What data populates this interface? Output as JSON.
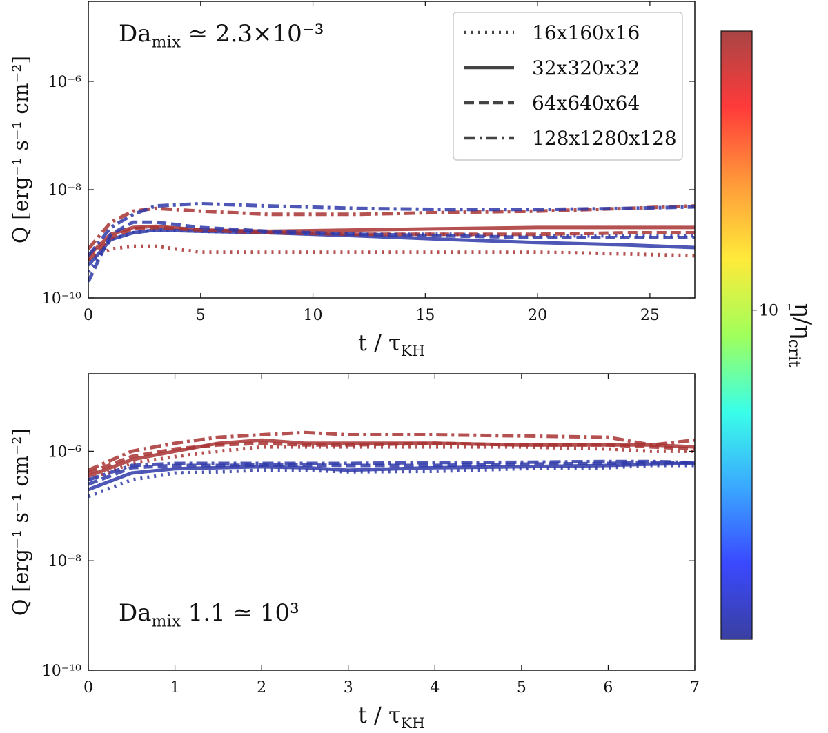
{
  "chart_data": [
    {
      "type": "line",
      "log_y": true,
      "annotation": {
        "text": "Da",
        "sub": "mix",
        "rest": " ≃ 2.3×10⁻³"
      },
      "xlabel": {
        "text": "t / τ",
        "sub": "KH"
      },
      "ylabel": "Q [erg⁻¹ s⁻¹ cm⁻²]",
      "xlim": [
        0,
        27
      ],
      "ylim": [
        1e-10,
        3e-05
      ],
      "xticks": [
        0,
        5,
        10,
        15,
        20,
        25
      ],
      "yticks": [
        {
          "value": 1e-10,
          "label": "10⁻¹⁰"
        },
        {
          "value": 1e-08,
          "label": "10⁻⁸"
        },
        {
          "value": 1e-06,
          "label": "10⁻⁶"
        }
      ],
      "legend": {
        "position": "upper right",
        "entries": [
          {
            "name": "16x160x16",
            "linestyle": "dotted"
          },
          {
            "name": "32x320x32",
            "linestyle": "solid"
          },
          {
            "name": "64x640x64",
            "linestyle": "dashed"
          },
          {
            "name": "128x1280x128",
            "linestyle": "dashdot"
          }
        ]
      },
      "x": [
        0,
        1,
        2,
        3,
        5,
        8,
        12,
        16,
        20,
        24,
        27
      ],
      "series": [
        {
          "color": "#a83232",
          "linestyle": "dotted",
          "values": [
            5e-10,
            8e-10,
            9e-10,
            9e-10,
            7e-10,
            7e-10,
            7e-10,
            7e-10,
            7e-10,
            6.5e-10,
            6e-10
          ]
        },
        {
          "color": "#2f3aa8",
          "linestyle": "dotted",
          "values": [
            3e-10,
            1.2e-09,
            1.6e-09,
            1.8e-09,
            1.7e-09,
            1.6e-09,
            1.5e-09,
            1.5e-09,
            1.4e-09,
            1.4e-09,
            1.4e-09
          ]
        },
        {
          "color": "#a83232",
          "linestyle": "solid",
          "values": [
            6e-10,
            1.5e-09,
            2e-09,
            2.1e-09,
            1.8e-09,
            1.7e-09,
            1.8e-09,
            1.9e-09,
            2e-09,
            2e-09,
            2e-09
          ]
        },
        {
          "color": "#2f3aa8",
          "linestyle": "solid",
          "values": [
            4e-10,
            1.2e-09,
            1.6e-09,
            1.8e-09,
            1.7e-09,
            1.6e-09,
            1.4e-09,
            1.2e-09,
            1.05e-09,
            9.5e-10,
            8.5e-10
          ]
        },
        {
          "color": "#a83232",
          "linestyle": "dashed",
          "values": [
            5e-10,
            1.3e-09,
            1.9e-09,
            2e-09,
            1.8e-09,
            1.6e-09,
            1.5e-09,
            1.5e-09,
            1.5e-09,
            1.6e-09,
            1.6e-09
          ]
        },
        {
          "color": "#2f3aa8",
          "linestyle": "dashed",
          "values": [
            2e-10,
            1.5e-09,
            2.5e-09,
            2.5e-09,
            2e-09,
            1.7e-09,
            1.5e-09,
            1.4e-09,
            1.3e-09,
            1.3e-09,
            1.3e-09
          ]
        },
        {
          "color": "#a83232",
          "linestyle": "dashdot",
          "values": [
            8e-10,
            2.5e-09,
            4e-09,
            4.5e-09,
            4e-09,
            3.5e-09,
            3.5e-09,
            3.8e-09,
            4e-09,
            4.5e-09,
            5e-09
          ]
        },
        {
          "color": "#2f3aa8",
          "linestyle": "dashdot",
          "values": [
            6e-10,
            2e-09,
            3.5e-09,
            5e-09,
            5.5e-09,
            5e-09,
            4.5e-09,
            4.3e-09,
            4.3e-09,
            4.5e-09,
            4.8e-09
          ]
        }
      ]
    },
    {
      "type": "line",
      "log_y": true,
      "annotation": {
        "text": "Da",
        "sub": "mix",
        "rest": " 1.1 ≃ 10³"
      },
      "xlabel": {
        "text": "t / τ",
        "sub": "KH"
      },
      "ylabel": "Q [erg⁻¹ s⁻¹ cm⁻²]",
      "xlim": [
        0,
        7
      ],
      "ylim": [
        1e-10,
        2.6e-05
      ],
      "xticks": [
        0,
        1,
        2,
        3,
        4,
        5,
        6,
        7
      ],
      "yticks": [
        {
          "value": 1e-10,
          "label": "10⁻¹⁰"
        },
        {
          "value": 1e-08,
          "label": "10⁻⁸"
        },
        {
          "value": 1e-06,
          "label": "10⁻⁶"
        }
      ],
      "x": [
        0,
        0.5,
        1,
        1.5,
        2,
        2.5,
        3,
        4,
        5,
        6,
        6.5,
        7
      ],
      "series": [
        {
          "color": "#a83232",
          "linestyle": "dotted",
          "values": [
            3e-07,
            6e-07,
            8e-07,
            1e-06,
            1.2e-06,
            1.2e-06,
            1.2e-06,
            1.2e-06,
            1.2e-06,
            1.1e-06,
            1e-06,
            1e-06
          ]
        },
        {
          "color": "#2f3aa8",
          "linestyle": "dotted",
          "values": [
            1.5e-07,
            3e-07,
            4e-07,
            4.2e-07,
            4.5e-07,
            4.5e-07,
            4.2e-07,
            4.3e-07,
            4.8e-07,
            5e-07,
            5.5e-07,
            5.5e-07
          ]
        },
        {
          "color": "#a83232",
          "linestyle": "solid",
          "values": [
            3.5e-07,
            7e-07,
            1e-06,
            1.4e-06,
            1.6e-06,
            1.4e-06,
            1.4e-06,
            1.4e-06,
            1.3e-06,
            1.3e-06,
            1.3e-06,
            1.2e-06
          ]
        },
        {
          "color": "#2f3aa8",
          "linestyle": "solid",
          "values": [
            2e-07,
            4e-07,
            4.8e-07,
            5e-07,
            5.2e-07,
            5e-07,
            4.5e-07,
            5e-07,
            5.2e-07,
            5.5e-07,
            5.8e-07,
            6e-07
          ]
        },
        {
          "color": "#a83232",
          "linestyle": "dashed",
          "values": [
            4e-07,
            8e-07,
            1.1e-06,
            1.3e-06,
            1.4e-06,
            1.3e-06,
            1.3e-06,
            1.4e-06,
            1.3e-06,
            1.3e-06,
            1.2e-06,
            1.1e-06
          ]
        },
        {
          "color": "#2f3aa8",
          "linestyle": "dashed",
          "values": [
            2.5e-07,
            5e-07,
            5.5e-07,
            5.5e-07,
            5.6e-07,
            5.6e-07,
            5.5e-07,
            5.5e-07,
            5.8e-07,
            6e-07,
            6.2e-07,
            6.2e-07
          ]
        },
        {
          "color": "#a83232",
          "linestyle": "dashdot",
          "values": [
            4.5e-07,
            1e-06,
            1.4e-06,
            1.8e-06,
            2e-06,
            2.2e-06,
            2e-06,
            2e-06,
            1.9e-06,
            1.8e-06,
            1.3e-06,
            1.6e-06
          ]
        },
        {
          "color": "#2f3aa8",
          "linestyle": "dashdot",
          "values": [
            3e-07,
            5.5e-07,
            6e-07,
            6e-07,
            6e-07,
            6e-07,
            6e-07,
            6.2e-07,
            6.3e-07,
            6.5e-07,
            6.5e-07,
            6.2e-07
          ]
        }
      ]
    }
  ],
  "colorbar": {
    "label": {
      "text": "η/η",
      "sub": "crit"
    },
    "lim": [
      0.011,
      0.65
    ],
    "log": true,
    "ticks": [
      {
        "value": 0.1,
        "label": "10⁻¹"
      }
    ],
    "colors": [
      "#3a3fa0",
      "#3a49ff",
      "#3aa8ff",
      "#3affe8",
      "#a0ff5a",
      "#ffea3a",
      "#ff9a3a",
      "#ff3a3a",
      "#a84545"
    ]
  }
}
